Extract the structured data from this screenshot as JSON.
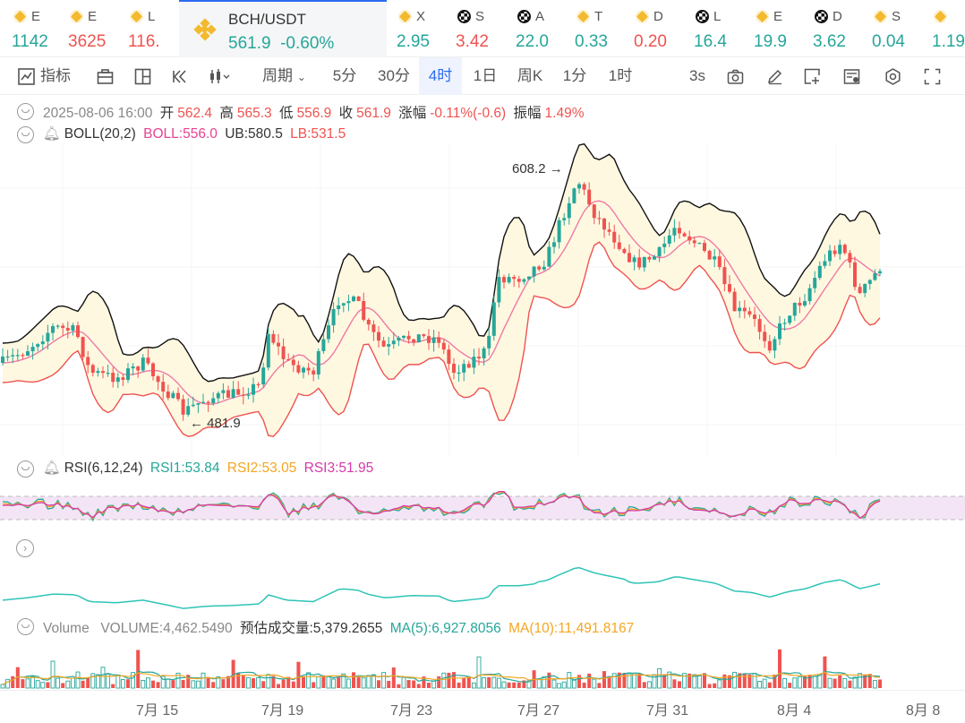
{
  "ticker": {
    "items": [
      {
        "sym": "E",
        "px": "1142",
        "dir": "up",
        "icon": "binance-icon",
        "left": 17
      },
      {
        "sym": "E",
        "px": "3625",
        "dir": "dn",
        "icon": "binance-icon",
        "left": 80
      },
      {
        "sym": "L",
        "px": "116.",
        "dir": "dn",
        "icon": "binance-icon",
        "left": 147
      },
      {
        "sym": "X",
        "px": "2.95",
        "dir": "up",
        "icon": "binance-icon",
        "left": 447
      },
      {
        "sym": "S",
        "px": "3.42",
        "dir": "dn",
        "icon": "chainlink-icon",
        "left": 513
      },
      {
        "sym": "A",
        "px": "22.0",
        "dir": "up",
        "icon": "chainlink-icon",
        "left": 580
      },
      {
        "sym": "T",
        "px": "0.33",
        "dir": "up",
        "icon": "binance-icon",
        "left": 646
      },
      {
        "sym": "D",
        "px": "0.20",
        "dir": "dn",
        "icon": "binance-icon",
        "left": 712
      },
      {
        "sym": "L",
        "px": "16.4",
        "dir": "up",
        "icon": "chainlink-icon",
        "left": 779
      },
      {
        "sym": "E",
        "px": "19.9",
        "dir": "up",
        "icon": "binance-icon",
        "left": 846
      },
      {
        "sym": "D",
        "px": "3.62",
        "dir": "up",
        "icon": "chainlink-icon",
        "left": 912
      },
      {
        "sym": "S",
        "px": "0.04",
        "dir": "up",
        "icon": "binance-icon",
        "left": 978
      },
      {
        "sym": "",
        "px": "1.19",
        "dir": "up",
        "icon": "binance-icon",
        "left": 1045
      }
    ],
    "active": {
      "sym": "BCH/USDT",
      "price": "561.9",
      "change": "-0.60%"
    }
  },
  "toolbar": {
    "indicators_label": "指标",
    "period_label": "周期",
    "intervals": [
      "5分",
      "30分",
      "4时",
      "1日",
      "周K",
      "1分",
      "1时"
    ],
    "active_interval": "4时",
    "refresh_label": "3s"
  },
  "ohlc": {
    "datetime": "2025-08-06 16:00",
    "open_label": "开",
    "open": "562.4",
    "high_label": "高",
    "high": "565.3",
    "low_label": "低",
    "low": "556.9",
    "close_label": "收",
    "close": "561.9",
    "change_label": "涨幅",
    "change": "-0.11%(-0.6)",
    "amplitude_label": "振幅",
    "amplitude": "1.49%"
  },
  "boll": {
    "name": "BOLL(20,2)",
    "mid": "BOLL:556.0",
    "ub": "UB:580.5",
    "lb": "LB:531.5"
  },
  "rsi": {
    "name": "RSI(6,12,24)",
    "rsi1": "RSI1:53.84",
    "rsi2": "RSI2:53.05",
    "rsi3": "RSI3:51.95"
  },
  "volume": {
    "name": "Volume",
    "volume": "VOLUME:4,462.5490",
    "estimate": "预估成交量:5,379.2655",
    "ma5": "MA(5):6,927.8056",
    "ma10": "MA(10):11,491.8167"
  },
  "annotations": {
    "high": "608.2",
    "low": "481.9"
  },
  "x_axis": [
    "7月 15",
    "7月 19",
    "7月 23",
    "7月 27",
    "7月 31",
    "8月 4",
    "8月 8"
  ],
  "colors": {
    "up": "#26a69a",
    "down": "#ef5350",
    "accent": "#2b6cf0",
    "boll_fill": "#fff8e1",
    "rsi_band": "#f3e5f5"
  },
  "chart_data": {
    "type": "candlestick",
    "title": "BCH/USDT 4时",
    "x": [
      "7月 15",
      "7月 19",
      "7月 23",
      "7月 27",
      "7月 31",
      "8月 4",
      "8月 8"
    ],
    "ylim": [
      470,
      620
    ],
    "extremes": {
      "high": 608.2,
      "low": 481.9
    }
  }
}
